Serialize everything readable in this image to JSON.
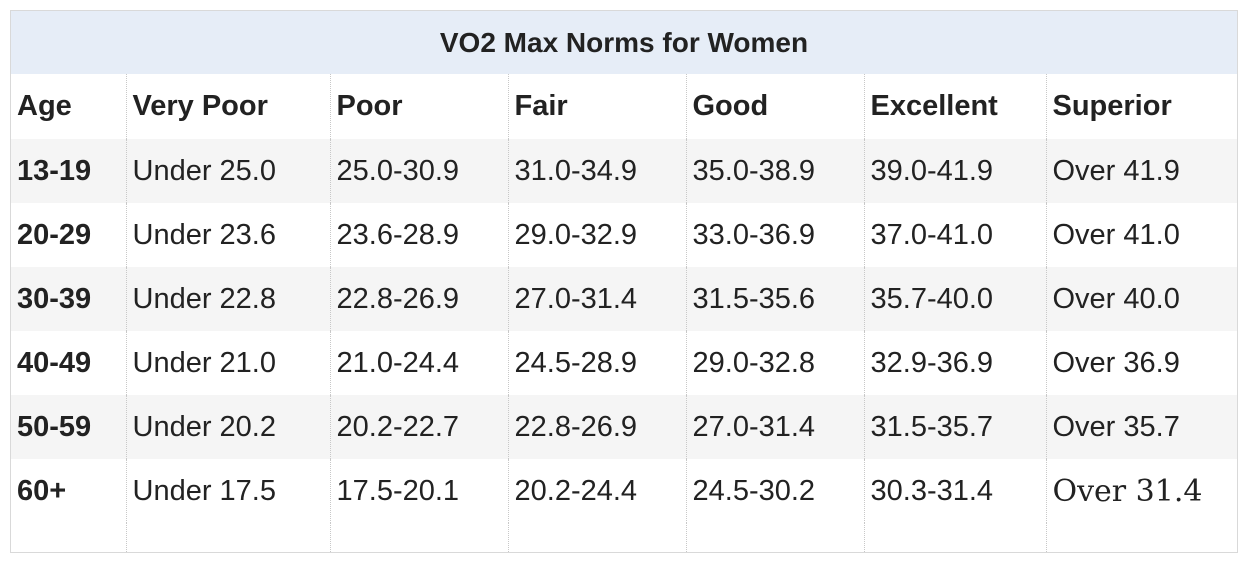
{
  "title": "VO2 Max Norms for Women",
  "headers": [
    "Age",
    "Very Poor",
    "Poor",
    "Fair",
    "Good",
    "Excellent",
    "Superior"
  ],
  "rows": [
    [
      "13-19",
      "Under 25.0",
      "25.0-30.9",
      "31.0-34.9",
      "35.0-38.9",
      "39.0-41.9",
      "Over 41.9"
    ],
    [
      "20-29",
      "Under 23.6",
      "23.6-28.9",
      "29.0-32.9",
      "33.0-36.9",
      "37.0-41.0",
      "Over 41.0"
    ],
    [
      "30-39",
      "Under 22.8",
      "22.8-26.9",
      "27.0-31.4",
      "31.5-35.6",
      "35.7-40.0",
      "Over 40.0"
    ],
    [
      "40-49",
      "Under 21.0",
      "21.0-24.4",
      "24.5-28.9",
      "29.0-32.8",
      "32.9-36.9",
      "Over 36.9"
    ],
    [
      "50-59",
      "Under 20.2",
      "20.2-22.7",
      "22.8-26.9",
      "27.0-31.4",
      "31.5-35.7",
      "Over 35.7"
    ],
    [
      "60+",
      "Under 17.5",
      "17.5-20.1",
      "20.2-24.4",
      "24.5-30.2",
      "30.3-31.4",
      "Over 31.4"
    ]
  ],
  "colors": {
    "title_background": "#e6edf7",
    "stripe": "#f5f5f5",
    "text": "#222222",
    "border": "#d9d9d9"
  }
}
